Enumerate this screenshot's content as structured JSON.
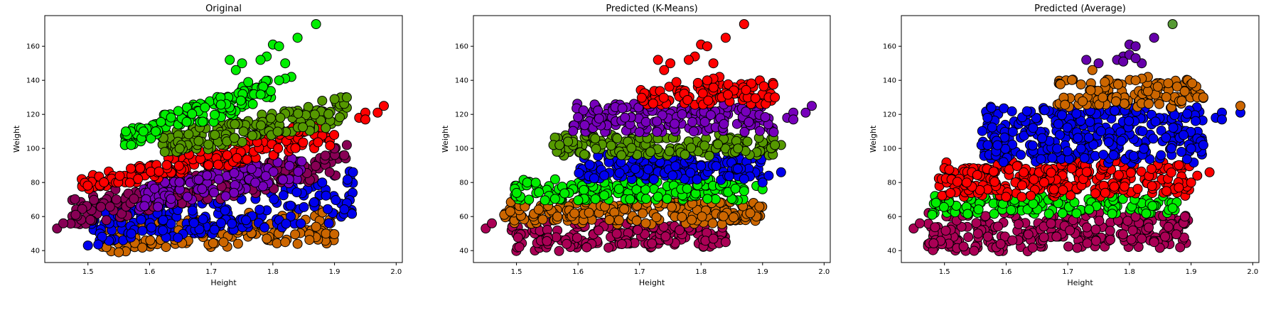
{
  "chart_data": [
    {
      "type": "scatter",
      "title": "Original",
      "xlabel": "Height",
      "ylabel": "Weight",
      "xlim": [
        1.43,
        2.01
      ],
      "ylim": [
        33,
        178
      ],
      "xticks": [
        "1.5",
        "1.6",
        "1.7",
        "1.8",
        "1.9",
        "2.0"
      ],
      "yticks": [
        "40",
        "60",
        "80",
        "100",
        "120",
        "140",
        "160"
      ],
      "grid": false,
      "series": [
        {
          "color": "#cc6600",
          "bands": [
            {
              "x0": 1.52,
              "x1": 1.9,
              "y0a": 40,
              "y1a": 56,
              "y0b": 44,
              "y1b": 64,
              "n": 150
            }
          ],
          "points": [
            [
              1.55,
              39
            ],
            [
              1.53,
              42
            ],
            [
              1.82,
              45
            ],
            [
              1.79,
              47
            ],
            [
              1.87,
              54
            ],
            [
              1.72,
              45
            ]
          ]
        },
        {
          "color": "#0000ee",
          "bands": [
            {
              "x0": 1.5,
              "x1": 1.93,
              "y0a": 43,
              "y1a": 62,
              "y0b": 58,
              "y1b": 88,
              "n": 220
            }
          ],
          "points": [
            [
              1.93,
              86
            ],
            [
              1.9,
              84
            ],
            [
              1.88,
              80
            ],
            [
              1.86,
              82
            ],
            [
              1.5,
              43
            ]
          ]
        },
        {
          "color": "#880055",
          "bands": [
            {
              "x0": 1.47,
              "x1": 1.92,
              "y0a": 54,
              "y1a": 70,
              "y0b": 85,
              "y1b": 102,
              "n": 230
            }
          ],
          "points": [
            [
              1.45,
              53
            ],
            [
              1.46,
              56
            ],
            [
              1.48,
              61
            ],
            [
              1.92,
              102
            ],
            [
              1.9,
              100
            ]
          ]
        },
        {
          "color": "#7700bb",
          "bands": [
            {
              "x0": 1.58,
              "x1": 1.85,
              "y0a": 62,
              "y1a": 78,
              "y0b": 82,
              "y1b": 96,
              "n": 110
            }
          ],
          "points": []
        },
        {
          "color": "#ff0000",
          "bands": [
            {
              "x0": 1.49,
              "x1": 1.9,
              "y0a": 74,
              "y1a": 82,
              "y0b": 102,
              "y1b": 118,
              "n": 200
            }
          ],
          "points": [
            [
              1.94,
              118
            ],
            [
              1.95,
              121
            ],
            [
              1.97,
              121
            ],
            [
              1.98,
              125
            ],
            [
              1.95,
              117
            ]
          ]
        },
        {
          "color": "#559900",
          "bands": [
            {
              "x0": 1.62,
              "x1": 1.92,
              "y0a": 96,
              "y1a": 108,
              "y0b": 114,
              "y1b": 130,
              "n": 170
            }
          ],
          "points": [
            [
              1.91,
              130
            ],
            [
              1.92,
              130
            ],
            [
              1.9,
              129
            ],
            [
              1.88,
              128
            ]
          ]
        },
        {
          "color": "#00ee00",
          "bands": [
            {
              "x0": 1.56,
              "x1": 1.8,
              "y0a": 100,
              "y1a": 112,
              "y0b": 128,
              "y1b": 142,
              "n": 150
            }
          ],
          "points": [
            [
              1.87,
              173
            ],
            [
              1.84,
              165
            ],
            [
              1.8,
              161
            ],
            [
              1.81,
              160
            ],
            [
              1.79,
              154
            ],
            [
              1.82,
              150
            ],
            [
              1.78,
              152
            ],
            [
              1.73,
              152
            ],
            [
              1.75,
              150
            ],
            [
              1.74,
              146
            ],
            [
              1.76,
              139
            ],
            [
              1.83,
              142
            ],
            [
              1.82,
              141
            ],
            [
              1.81,
              140
            ],
            [
              1.56,
              102
            ],
            [
              1.57,
              102
            ],
            [
              1.59,
              110
            ],
            [
              1.61,
              110
            ]
          ]
        }
      ]
    },
    {
      "type": "scatter",
      "title": "Predicted (K-Means)",
      "xlabel": "Height",
      "ylabel": "Weight",
      "xlim": [
        1.43,
        2.01
      ],
      "ylim": [
        33,
        178
      ],
      "xticks": [
        "1.5",
        "1.6",
        "1.7",
        "1.8",
        "1.9",
        "2.0"
      ],
      "yticks": [
        "40",
        "60",
        "80",
        "100",
        "120",
        "140",
        "160"
      ],
      "grid": false,
      "series": [
        {
          "color": "#aa0055",
          "bands": [
            {
              "x0": 1.49,
              "x1": 1.84,
              "y0a": 40,
              "y1a": 56,
              "y0b": 42,
              "y1b": 56,
              "n": 190
            }
          ],
          "points": [
            [
              1.45,
              53
            ],
            [
              1.46,
              56
            ],
            [
              1.82,
              47
            ],
            [
              1.84,
              45
            ]
          ]
        },
        {
          "color": "#cc6600",
          "bands": [
            {
              "x0": 1.48,
              "x1": 1.9,
              "y0a": 56,
              "y1a": 69,
              "y0b": 56,
              "y1b": 69,
              "n": 200
            }
          ],
          "points": [
            [
              1.48,
              61
            ],
            [
              1.49,
              63
            ],
            [
              1.89,
              60
            ],
            [
              1.88,
              62
            ]
          ]
        },
        {
          "color": "#00ee00",
          "bands": [
            {
              "x0": 1.49,
              "x1": 1.87,
              "y0a": 69,
              "y1a": 82,
              "y0b": 69,
              "y1b": 82,
              "n": 200
            }
          ],
          "points": [
            [
              1.87,
              75
            ],
            [
              1.89,
              78
            ],
            [
              1.9,
              76
            ]
          ]
        },
        {
          "color": "#0000ee",
          "bands": [
            {
              "x0": 1.6,
              "x1": 1.9,
              "y0a": 82,
              "y1a": 96,
              "y0b": 82,
              "y1b": 96,
              "n": 190
            }
          ],
          "points": [
            [
              1.93,
              86
            ],
            [
              1.91,
              84
            ],
            [
              1.9,
              80
            ]
          ]
        },
        {
          "color": "#559900",
          "bands": [
            {
              "x0": 1.56,
              "x1": 1.92,
              "y0a": 96,
              "y1a": 108,
              "y0b": 96,
              "y1b": 108,
              "n": 180
            }
          ],
          "points": [
            [
              1.56,
              102
            ],
            [
              1.57,
              102
            ],
            [
              1.93,
              102
            ],
            [
              1.92,
              102
            ],
            [
              1.86,
              100
            ]
          ]
        },
        {
          "color": "#7700bb",
          "bands": [
            {
              "x0": 1.59,
              "x1": 1.92,
              "y0a": 108,
              "y1a": 126,
              "y0b": 110,
              "y1b": 126,
              "n": 180
            }
          ],
          "points": [
            [
              1.94,
              118
            ],
            [
              1.95,
              121
            ],
            [
              1.97,
              121
            ],
            [
              1.98,
              125
            ],
            [
              1.95,
              117
            ]
          ]
        },
        {
          "color": "#ff0000",
          "bands": [
            {
              "x0": 1.7,
              "x1": 1.92,
              "y0a": 126,
              "y1a": 136,
              "y0b": 126,
              "y1b": 140,
              "n": 110
            }
          ],
          "points": [
            [
              1.87,
              173
            ],
            [
              1.84,
              165
            ],
            [
              1.8,
              161
            ],
            [
              1.81,
              160
            ],
            [
              1.79,
              154
            ],
            [
              1.82,
              150
            ],
            [
              1.78,
              152
            ],
            [
              1.73,
              152
            ],
            [
              1.75,
              150
            ],
            [
              1.74,
              146
            ],
            [
              1.76,
              139
            ],
            [
              1.83,
              142
            ],
            [
              1.82,
              141
            ],
            [
              1.81,
              140
            ],
            [
              1.91,
              130
            ],
            [
              1.92,
              130
            ]
          ]
        }
      ]
    },
    {
      "type": "scatter",
      "title": "Predicted (Average)",
      "xlabel": "Height",
      "ylabel": "Weight",
      "xlim": [
        1.43,
        2.01
      ],
      "ylim": [
        33,
        178
      ],
      "xticks": [
        "1.5",
        "1.6",
        "1.7",
        "1.8",
        "1.9",
        "2.0"
      ],
      "yticks": [
        "40",
        "60",
        "80",
        "100",
        "120",
        "140",
        "160"
      ],
      "grid": false,
      "series": [
        {
          "color": "#aa0055",
          "bands": [
            {
              "x0": 1.47,
              "x1": 1.9,
              "y0a": 40,
              "y1a": 62,
              "y0b": 42,
              "y1b": 62,
              "n": 260
            }
          ],
          "points": [
            [
              1.45,
              53
            ],
            [
              1.46,
              56
            ],
            [
              1.82,
              47
            ],
            [
              1.84,
              45
            ],
            [
              1.89,
              60
            ]
          ]
        },
        {
          "color": "#00ee00",
          "bands": [
            {
              "x0": 1.48,
              "x1": 1.88,
              "y0a": 62,
              "y1a": 72,
              "y0b": 62,
              "y1b": 72,
              "n": 160
            }
          ],
          "points": [
            [
              1.48,
              61
            ],
            [
              1.87,
              65
            ]
          ]
        },
        {
          "color": "#ff0000",
          "bands": [
            {
              "x0": 1.49,
              "x1": 1.9,
              "y0a": 72,
              "y1a": 92,
              "y0b": 72,
              "y1b": 92,
              "n": 280
            }
          ],
          "points": [
            [
              1.93,
              86
            ],
            [
              1.91,
              84
            ],
            [
              1.9,
              80
            ],
            [
              1.86,
              75
            ],
            [
              1.88,
              77
            ]
          ]
        },
        {
          "color": "#0000ee",
          "bands": [
            {
              "x0": 1.56,
              "x1": 1.92,
              "y0a": 92,
              "y1a": 124,
              "y0b": 92,
              "y1b": 124,
              "n": 330
            }
          ],
          "points": [
            [
              1.56,
              102
            ],
            [
              1.57,
              102
            ],
            [
              1.94,
              118
            ],
            [
              1.95,
              121
            ],
            [
              1.98,
              121
            ],
            [
              1.95,
              117
            ],
            [
              1.92,
              102
            ],
            [
              1.9,
              100
            ]
          ]
        },
        {
          "color": "#cc6600",
          "bands": [
            {
              "x0": 1.68,
              "x1": 1.92,
              "y0a": 124,
              "y1a": 140,
              "y0b": 124,
              "y1b": 140,
              "n": 120
            }
          ],
          "points": [
            [
              1.74,
              146
            ],
            [
              1.76,
              139
            ],
            [
              1.83,
              142
            ],
            [
              1.82,
              141
            ],
            [
              1.81,
              140
            ],
            [
              1.91,
              130
            ],
            [
              1.92,
              130
            ],
            [
              1.98,
              125
            ]
          ]
        },
        {
          "color": "#6600aa",
          "bands": [],
          "points": [
            [
              1.84,
              165
            ],
            [
              1.8,
              161
            ],
            [
              1.81,
              160
            ],
            [
              1.79,
              154
            ],
            [
              1.82,
              150
            ],
            [
              1.78,
              152
            ],
            [
              1.73,
              152
            ],
            [
              1.75,
              150
            ],
            [
              1.8,
              155
            ],
            [
              1.81,
              153
            ],
            [
              1.79,
              151
            ]
          ]
        },
        {
          "color": "#559933",
          "bands": [],
          "points": [
            [
              1.87,
              173
            ]
          ]
        }
      ]
    }
  ]
}
